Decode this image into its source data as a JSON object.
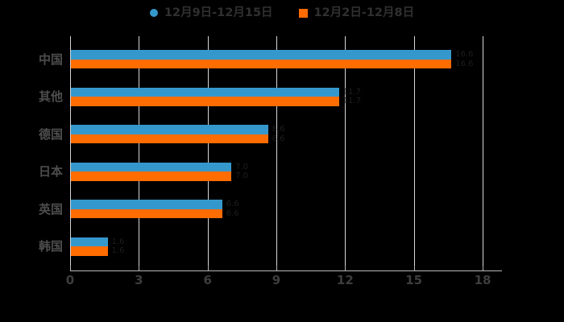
{
  "legend": [
    {
      "label": "12月9日-12月15日",
      "color": "#3598cc",
      "marker": "circle"
    },
    {
      "label": "12月2日-12月8日",
      "color": "#ff6c00",
      "marker": "square"
    }
  ],
  "chart_data": {
    "type": "bar",
    "orientation": "horizontal",
    "title": "",
    "xlabel": "",
    "ylabel": "",
    "categories": [
      "中国",
      "其他",
      "德国",
      "日本",
      "英国",
      "韩国"
    ],
    "series": [
      {
        "name": "12月9日-12月15日",
        "color": "#3598cc",
        "values": [
          16.6,
          11.7,
          8.6,
          7.0,
          6.6,
          1.6
        ]
      },
      {
        "name": "12月2日-12月8日",
        "color": "#ff6c00",
        "values": [
          16.6,
          11.7,
          8.6,
          7.0,
          6.6,
          1.6
        ]
      }
    ],
    "xlim": [
      0,
      18
    ],
    "x_ticks": [
      0,
      3,
      6,
      9,
      12,
      15,
      18
    ],
    "grid": true,
    "legend_position": "top",
    "data_labels_visible": "barely (near-black text)",
    "background": "#000000"
  },
  "colors": {
    "background": "#000000",
    "grid": "#d6d6d6",
    "axis": "#b9b9b9",
    "tick_label": "#3d3d3d",
    "category_label": "#4d4d4d",
    "legend_text": "#303030",
    "series_blue": "#3598cc",
    "series_orange": "#ff6c00",
    "data_label": "#1d1d1d"
  }
}
